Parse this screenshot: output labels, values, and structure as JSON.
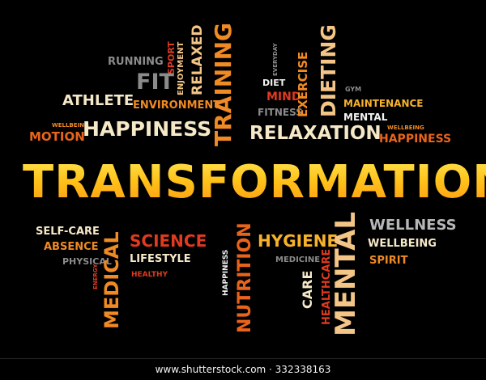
{
  "words": {
    "running": "RUNNING",
    "sport": "SPORT",
    "enjoyment": "ENJOYMENT",
    "relaxed": "RELAXED",
    "training": "TRAINING",
    "everyday": "EVERYDAY",
    "exercise": "EXERCISE",
    "dieting": "DIETING",
    "diet": "DIET",
    "mind": "MIND",
    "fitness": "FITNESS",
    "gym": "GYM",
    "fit": "FIT",
    "athlete": "ATHLETE",
    "environment": "ENVIRONMENT",
    "maintenance": "MAINTENANCE",
    "mental_small": "MENTAL",
    "wellbeing_top_left": "WELLBEING",
    "happiness_main": "HAPPINESS",
    "motion": "MOTION",
    "relaxation": "RELAXATION",
    "wellbeing_top_right": "WELLBEING",
    "happiness_right": "HAPPINESS",
    "transformation": "TRANSFORMATION",
    "self_care": "SELF-CARE",
    "absence": "ABSENCE",
    "physical": "PHYSICAL",
    "energy": "ENERGY",
    "medical": "MEDICAL",
    "science": "SCIENCE",
    "lifestyle": "LIFESTYLE",
    "healthy": "HEALTHY",
    "happiness_vertical": "HAPPINESS",
    "nutrition": "NUTRITION",
    "hygiene": "HYGIENE",
    "medicine": "MEDICINE",
    "care": "CARE",
    "healthcare": "HEALTHCARE",
    "mental_big": "MENTAL",
    "wellness": "WELLNESS",
    "wellbeing_bottom": "WELLBEING",
    "spirit": "SPIRIT"
  },
  "footer": {
    "watermark": "www.shutterstock.com · 332338163"
  }
}
